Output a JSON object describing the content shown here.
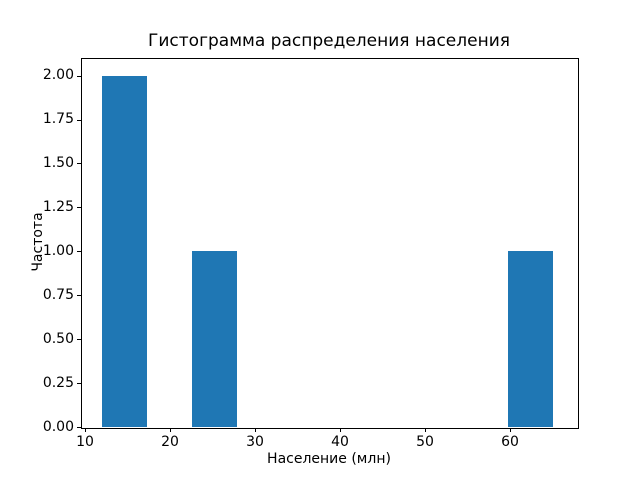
{
  "chart_data": {
    "type": "bar",
    "subtype": "histogram",
    "title": "Гистограмма распределения населения",
    "xlabel": "Население (млн)",
    "ylabel": "Частота",
    "bars": [
      {
        "x0": 12.0,
        "x1": 17.3,
        "count": 2
      },
      {
        "x0": 22.6,
        "x1": 27.9,
        "count": 1
      },
      {
        "x0": 59.7,
        "x1": 65.0,
        "count": 1
      }
    ],
    "xticks": [
      10,
      20,
      30,
      40,
      50,
      60
    ],
    "yticks": [
      "0.00",
      "0.25",
      "0.50",
      "0.75",
      "1.00",
      "1.25",
      "1.50",
      "1.75",
      "2.00"
    ],
    "xlim": [
      9.53,
      67.88
    ],
    "ylim": [
      0,
      2.1
    ],
    "bar_color": "#1f77b4",
    "axis_color": "#000000",
    "background_color": "#ffffff",
    "grid": false,
    "legend_position": "none"
  }
}
